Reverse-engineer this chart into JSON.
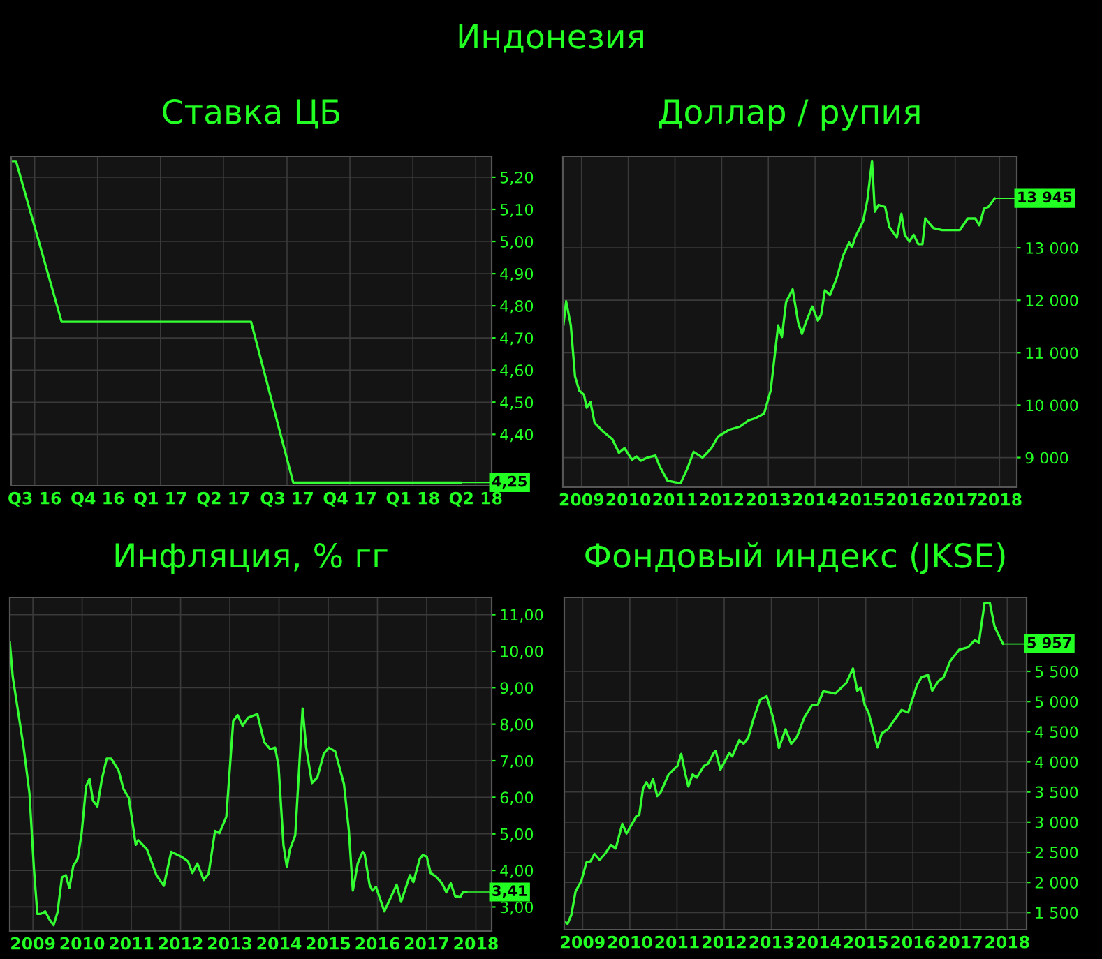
{
  "chart_data": [
    {
      "type": "line",
      "title": "Ставка ЦБ",
      "color": "#33ff33",
      "grid": true,
      "annotations": [
        "Индонезия",
        {
          "text": "4,25",
          "x": "2018-04-25",
          "y": 4.25
        }
      ],
      "x": [
        "2016-07-13",
        "2016-07-20",
        "2016-09-24",
        "2017-06-25",
        "2017-08-25",
        "2018-04-25"
      ],
      "values": [
        5.25,
        5.25,
        4.75,
        4.75,
        4.25,
        4.25
      ],
      "xlim": [
        "2016-07-13",
        "2018-06-08"
      ],
      "ylim": [
        4.24,
        5.265
      ],
      "xticks": [
        {
          "value": "2016-08-16",
          "label": "Q3 16"
        },
        {
          "value": "2016-11-15",
          "label": "Q4 16"
        },
        {
          "value": "2017-02-14",
          "label": "Q1 17"
        },
        {
          "value": "2017-05-16",
          "label": "Q2 17"
        },
        {
          "value": "2017-08-16",
          "label": "Q3 17"
        },
        {
          "value": "2017-11-15",
          "label": "Q4 17"
        },
        {
          "value": "2018-02-14",
          "label": "Q1 18"
        },
        {
          "value": "2018-05-16",
          "label": "Q2 18"
        }
      ],
      "yticks": [
        {
          "value": 4.4,
          "label": "4,40"
        },
        {
          "value": 4.5,
          "label": "4,50"
        },
        {
          "value": 4.6,
          "label": "4,60"
        },
        {
          "value": 4.7,
          "label": "4,70"
        },
        {
          "value": 4.8,
          "label": "4,80"
        },
        {
          "value": 4.9,
          "label": "4,90"
        },
        {
          "value": 5.0,
          "label": "5,00"
        },
        {
          "value": 5.1,
          "label": "5,10"
        },
        {
          "value": 5.2,
          "label": "5,20"
        }
      ]
    },
    {
      "type": "line",
      "title": "Доллар / рупия",
      "color": "#33ff33",
      "grid": true,
      "annotations": [
        {
          "text": "13 945",
          "x": 2018.35,
          "y": 13945
        }
      ],
      "x": [
        2009.11,
        2009.17,
        2009.27,
        2009.36,
        2009.45,
        2009.55,
        2009.61,
        2009.69,
        2009.78,
        2009.97,
        2010.16,
        2010.3,
        2010.42,
        2010.58,
        2010.68,
        2010.77,
        2010.91,
        2011.08,
        2011.18,
        2011.34,
        2011.5,
        2011.62,
        2011.76,
        2011.9,
        2012.09,
        2012.28,
        2012.42,
        2012.66,
        2012.89,
        2013.08,
        2013.22,
        2013.41,
        2013.55,
        2013.71,
        2013.79,
        2013.88,
        2014.02,
        2014.14,
        2014.22,
        2014.3,
        2014.44,
        2014.56,
        2014.63,
        2014.71,
        2014.82,
        2014.96,
        2015.1,
        2015.23,
        2015.29,
        2015.36,
        2015.53,
        2015.62,
        2015.72,
        2015.78,
        2015.86,
        2016.0,
        2016.09,
        2016.25,
        2016.35,
        2016.42,
        2016.52,
        2016.61,
        2016.71,
        2016.8,
        2016.86,
        2017.03,
        2017.22,
        2017.6,
        2017.77,
        2017.93,
        2018.02,
        2018.12,
        2018.21,
        2018.35
      ],
      "values": [
        11520,
        11980,
        11520,
        10550,
        10280,
        10200,
        9950,
        10060,
        9660,
        9490,
        9350,
        9090,
        9180,
        8960,
        9020,
        8940,
        9000,
        9040,
        8820,
        8560,
        8530,
        8510,
        8780,
        9110,
        9000,
        9180,
        9400,
        9530,
        9590,
        9710,
        9750,
        9840,
        10280,
        11520,
        11300,
        11970,
        12210,
        11570,
        11360,
        11570,
        11880,
        11610,
        11720,
        12190,
        12100,
        12410,
        12850,
        13100,
        13010,
        13200,
        13510,
        13910,
        14660,
        13690,
        13820,
        13780,
        13400,
        13200,
        13650,
        13250,
        13120,
        13250,
        13070,
        13070,
        13560,
        13380,
        13340,
        13340,
        13560,
        13560,
        13430,
        13750,
        13780,
        13945
      ],
      "xlim": [
        2009.1,
        2018.82
      ],
      "ylim": [
        8435,
        14745
      ],
      "xticks": [
        {
          "value": 2009.5,
          "label": "2009"
        },
        {
          "value": 2010.5,
          "label": "2010"
        },
        {
          "value": 2011.5,
          "label": "2011"
        },
        {
          "value": 2012.5,
          "label": "2012"
        },
        {
          "value": 2013.5,
          "label": "2013"
        },
        {
          "value": 2014.5,
          "label": "2014"
        },
        {
          "value": 2015.5,
          "label": "2015"
        },
        {
          "value": 2016.5,
          "label": "2016"
        },
        {
          "value": 2017.5,
          "label": "2017"
        },
        {
          "value": 2018.45,
          "label": "2018"
        }
      ],
      "yticks": [
        {
          "value": 9000,
          "label": "9 000"
        },
        {
          "value": 10000,
          "label": "10 000"
        },
        {
          "value": 11000,
          "label": "11 000"
        },
        {
          "value": 12000,
          "label": "12 000"
        },
        {
          "value": 13000,
          "label": "13 000"
        }
      ]
    },
    {
      "type": "line",
      "title": "Инфляция, % гг",
      "color": "#33ff33",
      "grid": true,
      "annotations": [
        {
          "text": "3,41",
          "x": 2018.31,
          "y": 3.41
        }
      ],
      "x": [
        2009.03,
        2009.09,
        2009.31,
        2009.43,
        2009.52,
        2009.59,
        2009.66,
        2009.75,
        2009.84,
        2009.92,
        2010.0,
        2010.09,
        2010.17,
        2010.24,
        2010.32,
        2010.41,
        2010.49,
        2010.58,
        2010.65,
        2010.72,
        2010.81,
        2010.9,
        2011.0,
        2011.09,
        2011.24,
        2011.34,
        2011.45,
        2011.59,
        2011.64,
        2011.82,
        2012.01,
        2012.16,
        2012.31,
        2012.51,
        2012.65,
        2012.74,
        2012.84,
        2012.97,
        2013.07,
        2013.2,
        2013.29,
        2013.43,
        2013.57,
        2013.66,
        2013.76,
        2013.87,
        2014.06,
        2014.2,
        2014.32,
        2014.42,
        2014.49,
        2014.59,
        2014.66,
        2014.72,
        2014.83,
        2014.98,
        2015.05,
        2015.17,
        2015.28,
        2015.41,
        2015.51,
        2015.64,
        2015.82,
        2015.92,
        2016.0,
        2016.1,
        2016.2,
        2016.24,
        2016.34,
        2016.4,
        2016.47,
        2016.64,
        2016.89,
        2016.98,
        2017.16,
        2017.23,
        2017.36,
        2017.42,
        2017.5,
        2017.58,
        2017.69,
        2017.81,
        2017.9,
        2017.99,
        2018.08,
        2018.18,
        2018.24,
        2018.31
      ],
      "values": [
        10.26,
        9.3,
        7.38,
        6.11,
        4.06,
        2.81,
        2.81,
        2.88,
        2.65,
        2.5,
        2.85,
        3.81,
        3.87,
        3.52,
        4.12,
        4.32,
        5.02,
        6.3,
        6.51,
        5.91,
        5.75,
        6.49,
        7.06,
        7.06,
        6.74,
        6.23,
        5.98,
        4.7,
        4.83,
        4.57,
        3.87,
        3.58,
        4.51,
        4.38,
        4.25,
        3.93,
        4.19,
        3.74,
        3.91,
        5.08,
        5.02,
        5.47,
        8.09,
        8.25,
        7.96,
        8.18,
        8.28,
        7.51,
        7.32,
        7.36,
        6.87,
        4.7,
        4.09,
        4.57,
        4.96,
        8.43,
        7.38,
        6.39,
        6.55,
        7.19,
        7.36,
        7.26,
        6.36,
        5.08,
        3.45,
        4.19,
        4.51,
        4.44,
        3.61,
        3.45,
        3.55,
        2.88,
        3.61,
        3.14,
        3.87,
        3.68,
        4.32,
        4.42,
        4.38,
        3.93,
        3.83,
        3.65,
        3.4,
        3.65,
        3.29,
        3.27,
        3.41,
        3.41
      ],
      "xlim": [
        2009.03,
        2018.82
      ],
      "ylim": [
        2.34,
        11.47
      ],
      "xticks": [
        {
          "value": 2009.5,
          "label": "2009"
        },
        {
          "value": 2010.5,
          "label": "2010"
        },
        {
          "value": 2011.5,
          "label": "2011"
        },
        {
          "value": 2012.5,
          "label": "2012"
        },
        {
          "value": 2013.5,
          "label": "2013"
        },
        {
          "value": 2014.5,
          "label": "2014"
        },
        {
          "value": 2015.5,
          "label": "2015"
        },
        {
          "value": 2016.5,
          "label": "2016"
        },
        {
          "value": 2017.5,
          "label": "2017"
        },
        {
          "value": 2018.5,
          "label": "2018"
        }
      ],
      "yticks": [
        {
          "value": 3,
          "label": "3,00"
        },
        {
          "value": 4,
          "label": "4,00"
        },
        {
          "value": 5,
          "label": "5,00"
        },
        {
          "value": 6,
          "label": "6,00"
        },
        {
          "value": 7,
          "label": "7,00"
        },
        {
          "value": 8,
          "label": "8,00"
        },
        {
          "value": 9,
          "label": "9,00"
        },
        {
          "value": 10,
          "label": "10,00"
        },
        {
          "value": 11,
          "label": "11,00"
        }
      ]
    },
    {
      "type": "line",
      "title": "Фондовый индекс (JKSE)",
      "color": "#33ff33",
      "grid": true,
      "annotations": [
        {
          "text": "5 957",
          "x": 2018.41,
          "y": 5957
        }
      ],
      "x": [
        2009.11,
        2009.18,
        2009.26,
        2009.35,
        2009.47,
        2009.58,
        2009.67,
        2009.75,
        2009.86,
        2009.98,
        2010.1,
        2010.2,
        2010.34,
        2010.43,
        2010.64,
        2010.7,
        2010.78,
        2010.85,
        2010.92,
        2010.99,
        2011.08,
        2011.15,
        2011.32,
        2011.45,
        2011.51,
        2011.59,
        2011.67,
        2011.74,
        2011.83,
        2011.92,
        2012.07,
        2012.16,
        2012.28,
        2012.32,
        2012.42,
        2012.61,
        2012.67,
        2012.82,
        2012.91,
        2013.01,
        2013.12,
        2013.26,
        2013.4,
        2013.54,
        2013.66,
        2013.8,
        2013.92,
        2014.04,
        2014.2,
        2014.36,
        2014.48,
        2014.6,
        2014.74,
        2014.85,
        2015.09,
        2015.23,
        2015.32,
        2015.4,
        2015.48,
        2015.56,
        2015.75,
        2015.84,
        2015.98,
        2016.12,
        2016.26,
        2016.4,
        2016.59,
        2016.68,
        2016.82,
        2016.91,
        2017.04,
        2017.15,
        2017.29,
        2017.48,
        2017.67,
        2017.81,
        2017.9,
        2018.02,
        2018.13,
        2018.23,
        2018.37,
        2018.41
      ],
      "values": [
        1350,
        1310,
        1460,
        1850,
        2020,
        2330,
        2350,
        2470,
        2370,
        2480,
        2620,
        2560,
        2970,
        2810,
        3100,
        3120,
        3560,
        3660,
        3560,
        3720,
        3430,
        3490,
        3790,
        3890,
        3930,
        4130,
        3820,
        3590,
        3790,
        3740,
        3930,
        3970,
        4150,
        4180,
        3870,
        4150,
        4090,
        4360,
        4300,
        4400,
        4710,
        5030,
        5090,
        4720,
        4230,
        4540,
        4300,
        4410,
        4740,
        4940,
        4940,
        5170,
        5150,
        5130,
        5310,
        5550,
        5180,
        5230,
        4940,
        4820,
        4240,
        4470,
        4550,
        4710,
        4860,
        4820,
        5280,
        5400,
        5440,
        5180,
        5340,
        5400,
        5670,
        5860,
        5900,
        6020,
        5980,
        6640,
        6640,
        6250,
        6020,
        5957
      ],
      "xlim": [
        2009.11,
        2018.91
      ],
      "ylim": [
        1214,
        6728
      ],
      "xticks": [
        {
          "value": 2009.5,
          "label": "2009"
        },
        {
          "value": 2010.5,
          "label": "2010"
        },
        {
          "value": 2011.5,
          "label": "2011"
        },
        {
          "value": 2012.5,
          "label": "2012"
        },
        {
          "value": 2013.5,
          "label": "2013"
        },
        {
          "value": 2014.5,
          "label": "2014"
        },
        {
          "value": 2015.5,
          "label": "2015"
        },
        {
          "value": 2016.5,
          "label": "2016"
        },
        {
          "value": 2017.5,
          "label": "2017"
        },
        {
          "value": 2018.5,
          "label": "2018"
        }
      ],
      "yticks": [
        {
          "value": 1500,
          "label": "1 500"
        },
        {
          "value": 2000,
          "label": "2 000"
        },
        {
          "value": 2500,
          "label": "2 500"
        },
        {
          "value": 3000,
          "label": "3 000"
        },
        {
          "value": 3500,
          "label": "3 500"
        },
        {
          "value": 4000,
          "label": "4 000"
        },
        {
          "value": 4500,
          "label": "4 500"
        },
        {
          "value": 5000,
          "label": "5 000"
        },
        {
          "value": 5500,
          "label": "5 500"
        }
      ]
    }
  ]
}
